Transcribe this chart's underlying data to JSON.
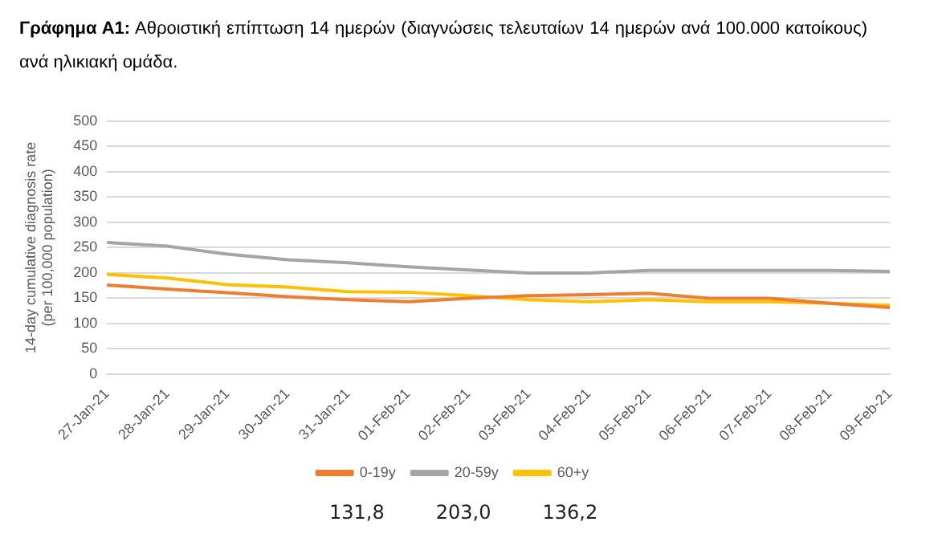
{
  "chart_data": {
    "type": "line",
    "title": "Γράφημα Α1: Αθροιστική επίπτωση 14 ημερών (διαγνώσεις τελευταίων 14 ημερών ανά 100.000 κατοίκους) ανά ηλικιακή ομάδα.",
    "ylabel": "14-day cumulative diagnosis rate (per 100,000 population)",
    "categories": [
      "27-Jan-21",
      "28-Jan-21",
      "29-Jan-21",
      "30-Jan-21",
      "31-Jan-21",
      "01-Feb-21",
      "02-Feb-21",
      "03-Feb-21",
      "04-Feb-21",
      "05-Feb-21",
      "06-Feb-21",
      "07-Feb-21",
      "08-Feb-21",
      "09-Feb-21"
    ],
    "series": [
      {
        "name": "0-19y",
        "color": "#ed7d31",
        "values": [
          176,
          168,
          161,
          153,
          147,
          143,
          150,
          155,
          157,
          160,
          150,
          150,
          140,
          131.8
        ]
      },
      {
        "name": "20-59y",
        "color": "#a5a5a5",
        "values": [
          260,
          253,
          237,
          226,
          220,
          212,
          206,
          200,
          200,
          205,
          205,
          205,
          205,
          203.0
        ]
      },
      {
        "name": "60+y",
        "color": "#ffc000",
        "values": [
          197,
          190,
          177,
          172,
          163,
          162,
          155,
          147,
          143,
          147,
          143,
          143,
          140,
          136.2
        ]
      }
    ],
    "ylim": [
      0,
      500
    ],
    "yticks": [
      0,
      50,
      100,
      150,
      200,
      250,
      300,
      350,
      400,
      450,
      500
    ],
    "grid": "y",
    "legend": "bottom",
    "marker": "none",
    "line_style": "solid",
    "annotations": [
      "131,8",
      "203,0",
      "136,2"
    ]
  }
}
